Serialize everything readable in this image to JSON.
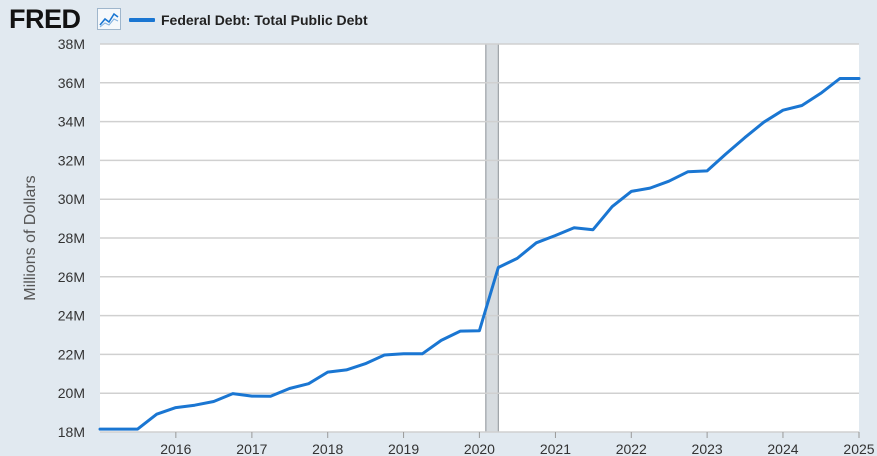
{
  "header": {
    "logo_text": "FRED",
    "logo_mark": "registered",
    "logo_icon": "line-chart-icon",
    "legend_label": "Federal Debt: Total Public Debt"
  },
  "chart_data": {
    "type": "line",
    "title": "",
    "xlabel": "",
    "ylabel": "Millions of Dollars",
    "series": [
      {
        "name": "Federal Debt: Total Public Debt",
        "color": "#1a76d2",
        "x": [
          "2015-01-01",
          "2015-04-01",
          "2015-07-01",
          "2015-10-01",
          "2016-01-01",
          "2016-04-01",
          "2016-07-01",
          "2016-10-01",
          "2017-01-01",
          "2017-04-01",
          "2017-07-01",
          "2017-10-01",
          "2018-01-01",
          "2018-04-01",
          "2018-07-01",
          "2018-10-01",
          "2019-01-01",
          "2019-04-01",
          "2019-07-01",
          "2019-10-01",
          "2020-01-01",
          "2020-04-01",
          "2020-07-01",
          "2020-10-01",
          "2021-01-01",
          "2021-04-01",
          "2021-07-01",
          "2021-10-01",
          "2022-01-01",
          "2022-04-01",
          "2022-07-01",
          "2022-10-01",
          "2023-01-01",
          "2023-04-01",
          "2023-07-01",
          "2023-10-01",
          "2024-01-01",
          "2024-04-01",
          "2024-07-01",
          "2024-10-01",
          "2025-01-01"
        ],
        "values": [
          18.15,
          18.15,
          18.15,
          18.92,
          19.26,
          19.38,
          19.57,
          19.98,
          19.85,
          19.84,
          20.24,
          20.49,
          21.09,
          21.2,
          21.52,
          21.97,
          22.03,
          22.03,
          22.72,
          23.2,
          23.22,
          26.48,
          26.95,
          27.75,
          28.13,
          28.53,
          28.43,
          29.62,
          30.4,
          30.57,
          30.93,
          31.42,
          31.46,
          32.33,
          33.17,
          33.97,
          34.59,
          34.83,
          35.46,
          36.22,
          36.22
        ]
      }
    ],
    "xlim": [
      "2015-01-01",
      "2025-01-01"
    ],
    "ylim": [
      18,
      38
    ],
    "y_ticks": [
      18,
      20,
      22,
      24,
      26,
      28,
      30,
      32,
      34,
      36,
      38
    ],
    "y_tick_labels": [
      "18M",
      "20M",
      "22M",
      "24M",
      "26M",
      "28M",
      "30M",
      "32M",
      "34M",
      "36M",
      "38M"
    ],
    "x_tick_labels": [
      "2016",
      "2017",
      "2018",
      "2019",
      "2020",
      "2021",
      "2022",
      "2023",
      "2024",
      "2025"
    ],
    "x_ticks": [
      "2016-01-01",
      "2017-01-01",
      "2018-01-01",
      "2019-01-01",
      "2020-01-01",
      "2021-01-01",
      "2022-01-01",
      "2023-01-01",
      "2024-01-01",
      "2025-01-01"
    ],
    "recession_band": [
      "2020-02-01",
      "2020-04-01"
    ],
    "grid": "horizontal",
    "colors": {
      "line": "#1a76d2",
      "background": "#e1e9f0",
      "plot": "#ffffff",
      "grid": "#d0d0d0",
      "recession": "#d7dce0"
    }
  }
}
